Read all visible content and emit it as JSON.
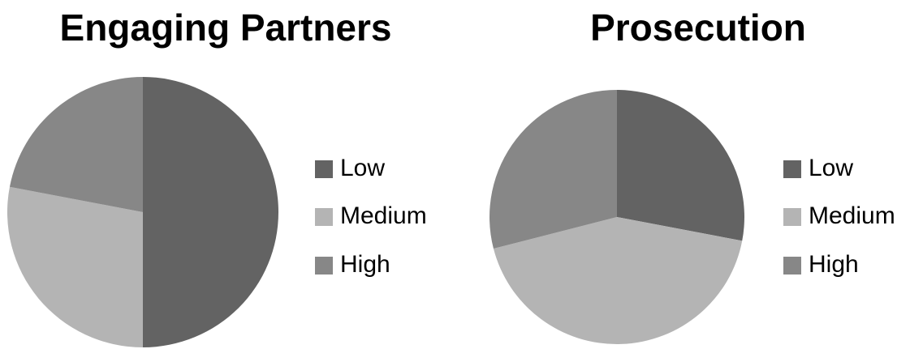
{
  "chart_data": [
    {
      "type": "pie",
      "title": "Engaging Partners",
      "categories": [
        "Low",
        "Medium",
        "High"
      ],
      "values": [
        50,
        28,
        22
      ],
      "colors": [
        "#636363",
        "#b4b4b4",
        "#878787"
      ],
      "legend": "right"
    },
    {
      "type": "pie",
      "title": "Prosecution",
      "categories": [
        "Low",
        "Medium",
        "High"
      ],
      "values": [
        28,
        43,
        29
      ],
      "colors": [
        "#636363",
        "#b4b4b4",
        "#878787"
      ],
      "legend": "right"
    }
  ]
}
